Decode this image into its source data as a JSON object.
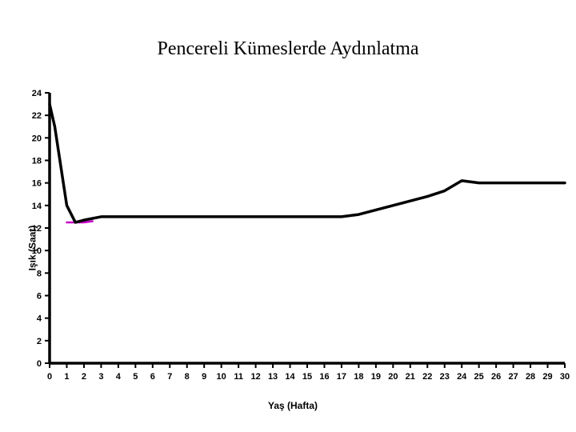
{
  "title": {
    "text": "Pencereli Kümeslerde Aydınlatma",
    "fontsize": 24,
    "fontweight": "normal",
    "color": "#000000"
  },
  "chart": {
    "type": "line",
    "background_color": "#ffffff",
    "axis_color": "#000000",
    "axis_width": 3.5,
    "xlabel": "Yaş (Hafta)",
    "ylabel": "Işık (Saat)",
    "label_fontsize": 12,
    "tick_fontsize": 11,
    "xlim": [
      0,
      30
    ],
    "ylim": [
      0,
      24
    ],
    "xtick_step": 1,
    "ytick_step": 2,
    "series_main": {
      "color": "#000000",
      "width": 3.5,
      "x": [
        0,
        0.3,
        0.6,
        1,
        1.5,
        2,
        3,
        4,
        5,
        6,
        7,
        8,
        9,
        10,
        11,
        12,
        13,
        14,
        15,
        16,
        17,
        18,
        19,
        20,
        21,
        22,
        23,
        24,
        25,
        26,
        27,
        28,
        29,
        30
      ],
      "y": [
        23,
        21,
        18,
        14,
        12.5,
        12.7,
        13,
        13,
        13,
        13,
        13,
        13,
        13,
        13,
        13,
        13,
        13,
        13,
        13,
        13,
        13,
        13.2,
        13.6,
        14,
        14.4,
        14.8,
        15.3,
        16.2,
        16,
        16,
        16,
        16,
        16,
        16
      ]
    },
    "series_accent": {
      "color": "#c800c8",
      "width": 2.5,
      "x": [
        1,
        1.5,
        2,
        2.5
      ],
      "y": [
        12.5,
        12.5,
        12.5,
        12.6
      ]
    }
  }
}
